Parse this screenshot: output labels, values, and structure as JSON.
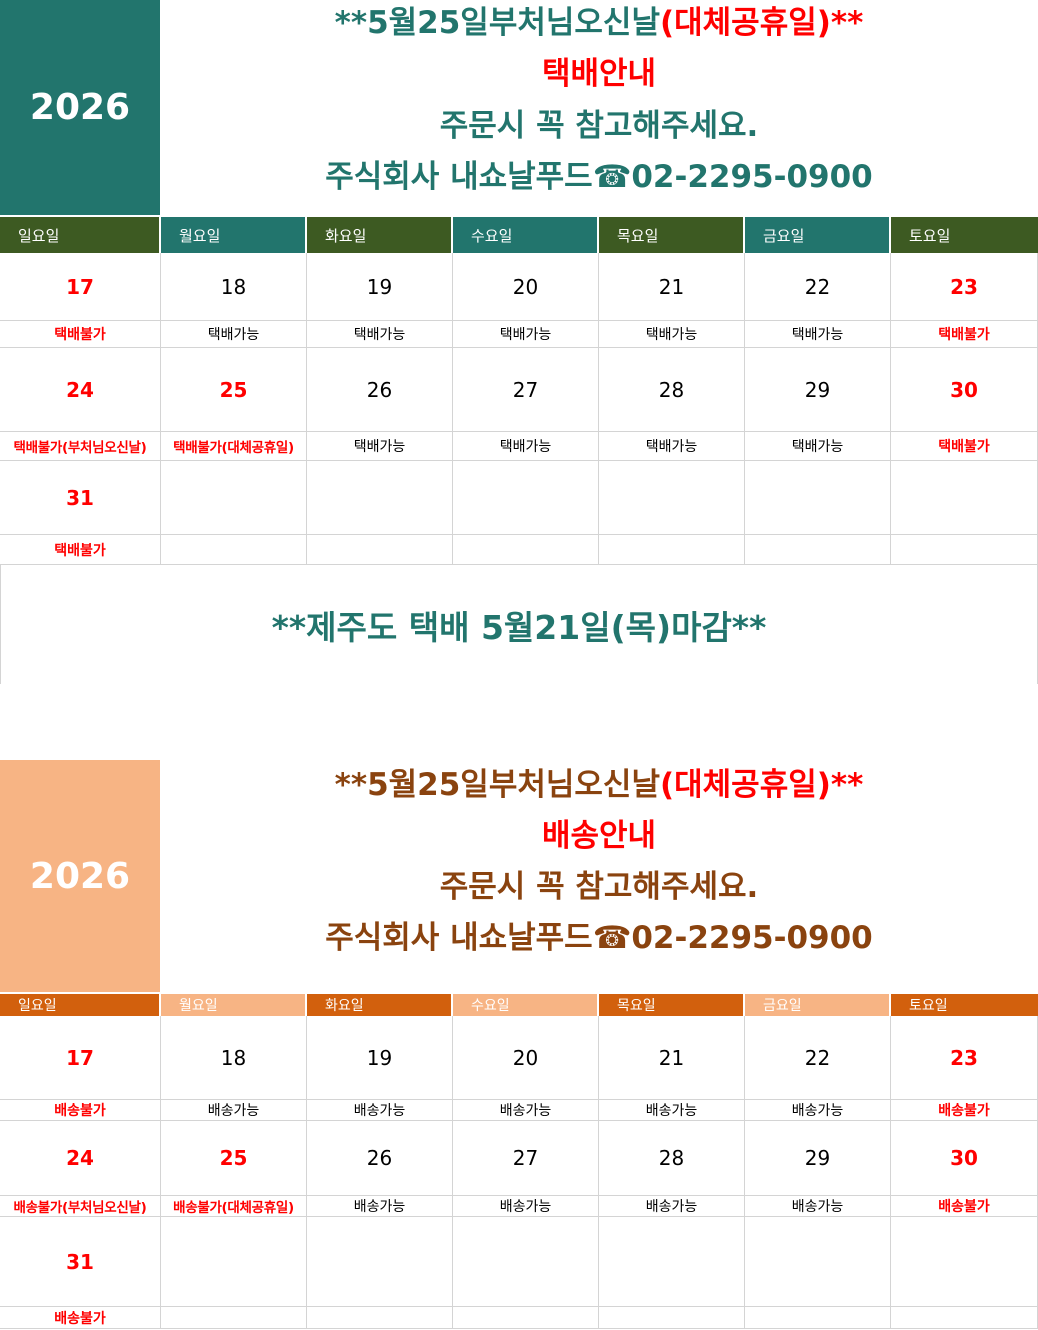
{
  "sections": [
    {
      "year": "2026",
      "line1_prefix": "**5월25일",
      "line1_mid": "부처님오신날",
      "line1_suffix": "(대체공휴일)**",
      "line2": "택배안내",
      "line3": "주문시 꼭 참고해주세요.",
      "line4": "주식회사 내쇼날푸드☎02-2295-0900",
      "weekdays": [
        "일요일",
        "월요일",
        "화요일",
        "수요일",
        "목요일",
        "금요일",
        "토요일"
      ],
      "weekday_colors": [
        "#3d5a22",
        "#22756d",
        "#3d5a22",
        "#22756d",
        "#3d5a22",
        "#22756d",
        "#3d5a22"
      ],
      "weeks": [
        {
          "days": [
            "17",
            "18",
            "19",
            "20",
            "21",
            "22",
            "23"
          ],
          "status": [
            "택배불가",
            "택배가능",
            "택배가능",
            "택배가능",
            "택배가능",
            "택배가능",
            "택배불가"
          ]
        },
        {
          "days": [
            "24",
            "25",
            "26",
            "27",
            "28",
            "29",
            "30"
          ],
          "status": [
            "택배불가(부처님오신날)",
            "택배불가(대체공휴일)",
            "택배가능",
            "택배가능",
            "택배가능",
            "택배가능",
            "택배불가"
          ]
        },
        {
          "days": [
            "31",
            "",
            "",
            "",
            "",
            "",
            ""
          ],
          "status": [
            "택배불가",
            "",
            "",
            "",
            "",
            "",
            ""
          ]
        }
      ],
      "notice": "**제주도 택배 5월21일(목)마감**"
    },
    {
      "year": "2026",
      "line1_prefix": "**5월25일",
      "line1_mid": "부처님오신날",
      "line1_suffix": "(대체공휴일)**",
      "line2": "배송안내",
      "line3": "주문시 꼭 참고해주세요.",
      "line4": "주식회사 내쇼날푸드☎02-2295-0900",
      "weekdays": [
        "일요일",
        "월요일",
        "화요일",
        "수요일",
        "목요일",
        "금요일",
        "토요일"
      ],
      "weekday_colors": [
        "#d2600d",
        "#f7b484",
        "#d2600d",
        "#f7b484",
        "#d2600d",
        "#f7b484",
        "#d2600d"
      ],
      "weeks": [
        {
          "days": [
            "17",
            "18",
            "19",
            "20",
            "21",
            "22",
            "23"
          ],
          "status": [
            "배송불가",
            "배송가능",
            "배송가능",
            "배송가능",
            "배송가능",
            "배송가능",
            "배송불가"
          ]
        },
        {
          "days": [
            "24",
            "25",
            "26",
            "27",
            "28",
            "29",
            "30"
          ],
          "status": [
            "배송불가(부처님오신날)",
            "배송불가(대체공휴일)",
            "배송가능",
            "배송가능",
            "배송가능",
            "배송가능",
            "배송불가"
          ]
        },
        {
          "days": [
            "31",
            "",
            "",
            "",
            "",
            "",
            ""
          ],
          "status": [
            "배송불가",
            "",
            "",
            "",
            "",
            "",
            ""
          ]
        }
      ]
    }
  ]
}
